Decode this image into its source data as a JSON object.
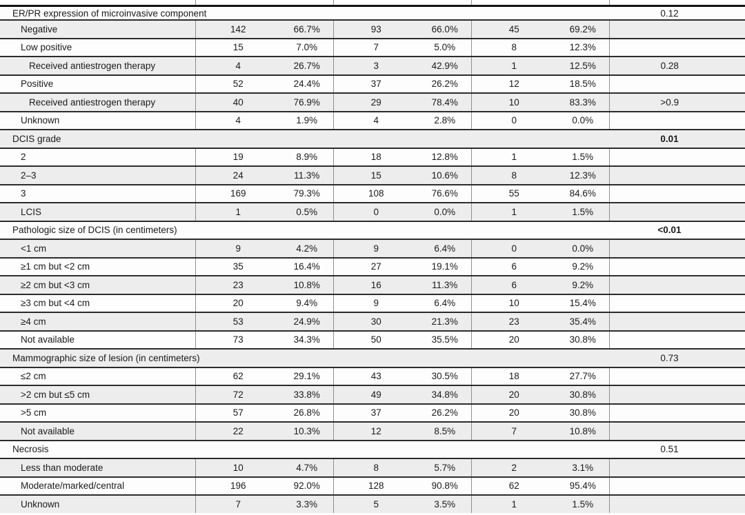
{
  "table": {
    "description": "Clinicopathologic characteristics table fragment with counts, percentages and p-values",
    "column_groups": [
      "label",
      "n_total",
      "pct_total",
      "n_group1",
      "pct_group1",
      "n_group2",
      "pct_group2",
      "p_value"
    ],
    "rows": [
      {
        "type": "section",
        "indent": 0,
        "label": "ER/PR expression of microinvasive component",
        "p": "0.12",
        "p_bold": false
      },
      {
        "type": "data",
        "indent": 1,
        "label": "Negative",
        "n1": "142",
        "pct1": "66.7%",
        "n2": "93",
        "pct2": "66.0%",
        "n3": "45",
        "pct3": "69.2%",
        "p": "",
        "p_bold": false
      },
      {
        "type": "data",
        "indent": 1,
        "label": "Low positive",
        "n1": "15",
        "pct1": "7.0%",
        "n2": "7",
        "pct2": "5.0%",
        "n3": "8",
        "pct3": "12.3%",
        "p": "",
        "p_bold": false
      },
      {
        "type": "data",
        "indent": 2,
        "label": "Received antiestrogen therapy",
        "n1": "4",
        "pct1": "26.7%",
        "n2": "3",
        "pct2": "42.9%",
        "n3": "1",
        "pct3": "12.5%",
        "p": "0.28",
        "p_bold": false
      },
      {
        "type": "data",
        "indent": 1,
        "label": "Positive",
        "n1": "52",
        "pct1": "24.4%",
        "n2": "37",
        "pct2": "26.2%",
        "n3": "12",
        "pct3": "18.5%",
        "p": "",
        "p_bold": false
      },
      {
        "type": "data",
        "indent": 2,
        "label": "Received antiestrogen therapy",
        "n1": "40",
        "pct1": "76.9%",
        "n2": "29",
        "pct2": "78.4%",
        "n3": "10",
        "pct3": "83.3%",
        "p": ">0.9",
        "p_bold": false
      },
      {
        "type": "data",
        "indent": 1,
        "label": "Unknown",
        "n1": "4",
        "pct1": "1.9%",
        "n2": "4",
        "pct2": "2.8%",
        "n3": "0",
        "pct3": "0.0%",
        "p": "",
        "p_bold": false
      },
      {
        "type": "section",
        "indent": 0,
        "label": "DCIS grade",
        "p": "0.01",
        "p_bold": true
      },
      {
        "type": "data",
        "indent": 1,
        "label": "2",
        "n1": "19",
        "pct1": "8.9%",
        "n2": "18",
        "pct2": "12.8%",
        "n3": "1",
        "pct3": "1.5%",
        "p": "",
        "p_bold": false
      },
      {
        "type": "data",
        "indent": 1,
        "label": "2–3",
        "n1": "24",
        "pct1": "11.3%",
        "n2": "15",
        "pct2": "10.6%",
        "n3": "8",
        "pct3": "12.3%",
        "p": "",
        "p_bold": false
      },
      {
        "type": "data",
        "indent": 1,
        "label": "3",
        "n1": "169",
        "pct1": "79.3%",
        "n2": "108",
        "pct2": "76.6%",
        "n3": "55",
        "pct3": "84.6%",
        "p": "",
        "p_bold": false
      },
      {
        "type": "data",
        "indent": 1,
        "label": "LCIS",
        "n1": "1",
        "pct1": "0.5%",
        "n2": "0",
        "pct2": "0.0%",
        "n3": "1",
        "pct3": "1.5%",
        "p": "",
        "p_bold": false
      },
      {
        "type": "section",
        "indent": 0,
        "label": "Pathologic size of DCIS (in centimeters)",
        "p": "<0.01",
        "p_bold": true
      },
      {
        "type": "data",
        "indent": 1,
        "label": "<1 cm",
        "n1": "9",
        "pct1": "4.2%",
        "n2": "9",
        "pct2": "6.4%",
        "n3": "0",
        "pct3": "0.0%",
        "p": "",
        "p_bold": false
      },
      {
        "type": "data",
        "indent": 1,
        "label": "≥1 cm but <2 cm",
        "n1": "35",
        "pct1": "16.4%",
        "n2": "27",
        "pct2": "19.1%",
        "n3": "6",
        "pct3": "9.2%",
        "p": "",
        "p_bold": false
      },
      {
        "type": "data",
        "indent": 1,
        "label": "≥2 cm but <3 cm",
        "n1": "23",
        "pct1": "10.8%",
        "n2": "16",
        "pct2": "11.3%",
        "n3": "6",
        "pct3": "9.2%",
        "p": "",
        "p_bold": false
      },
      {
        "type": "data",
        "indent": 1,
        "label": "≥3 cm but <4 cm",
        "n1": "20",
        "pct1": "9.4%",
        "n2": "9",
        "pct2": "6.4%",
        "n3": "10",
        "pct3": "15.4%",
        "p": "",
        "p_bold": false
      },
      {
        "type": "data",
        "indent": 1,
        "label": "≥4 cm",
        "n1": "53",
        "pct1": "24.9%",
        "n2": "30",
        "pct2": "21.3%",
        "n3": "23",
        "pct3": "35.4%",
        "p": "",
        "p_bold": false
      },
      {
        "type": "data",
        "indent": 1,
        "label": "Not available",
        "n1": "73",
        "pct1": "34.3%",
        "n2": "50",
        "pct2": "35.5%",
        "n3": "20",
        "pct3": "30.8%",
        "p": "",
        "p_bold": false
      },
      {
        "type": "section",
        "indent": 0,
        "label": "Mammographic size of lesion (in centimeters)",
        "p": "0.73",
        "p_bold": false
      },
      {
        "type": "data",
        "indent": 1,
        "label": "≤2 cm",
        "n1": "62",
        "pct1": "29.1%",
        "n2": "43",
        "pct2": "30.5%",
        "n3": "18",
        "pct3": "27.7%",
        "p": "",
        "p_bold": false
      },
      {
        "type": "data",
        "indent": 1,
        "label": ">2 cm but ≤5 cm",
        "n1": "72",
        "pct1": "33.8%",
        "n2": "49",
        "pct2": "34.8%",
        "n3": "20",
        "pct3": "30.8%",
        "p": "",
        "p_bold": false
      },
      {
        "type": "data",
        "indent": 1,
        "label": ">5 cm",
        "n1": "57",
        "pct1": "26.8%",
        "n2": "37",
        "pct2": "26.2%",
        "n3": "20",
        "pct3": "30.8%",
        "p": "",
        "p_bold": false
      },
      {
        "type": "data",
        "indent": 1,
        "label": "Not available",
        "n1": "22",
        "pct1": "10.3%",
        "n2": "12",
        "pct2": "8.5%",
        "n3": "7",
        "pct3": "10.8%",
        "p": "",
        "p_bold": false
      },
      {
        "type": "section",
        "indent": 0,
        "label": "Necrosis",
        "p": "0.51",
        "p_bold": false
      },
      {
        "type": "data",
        "indent": 1,
        "label": "Less than moderate",
        "n1": "10",
        "pct1": "4.7%",
        "n2": "8",
        "pct2": "5.7%",
        "n3": "2",
        "pct3": "3.1%",
        "p": "",
        "p_bold": false
      },
      {
        "type": "data",
        "indent": 1,
        "label": "Moderate/marked/central",
        "n1": "196",
        "pct1": "92.0%",
        "n2": "128",
        "pct2": "90.8%",
        "n3": "62",
        "pct3": "95.4%",
        "p": "",
        "p_bold": false
      },
      {
        "type": "data",
        "indent": 1,
        "label": "Unknown",
        "n1": "7",
        "pct1": "3.3%",
        "n2": "5",
        "pct2": "3.5%",
        "n3": "1",
        "pct3": "1.5%",
        "p": "",
        "p_bold": false
      }
    ]
  }
}
